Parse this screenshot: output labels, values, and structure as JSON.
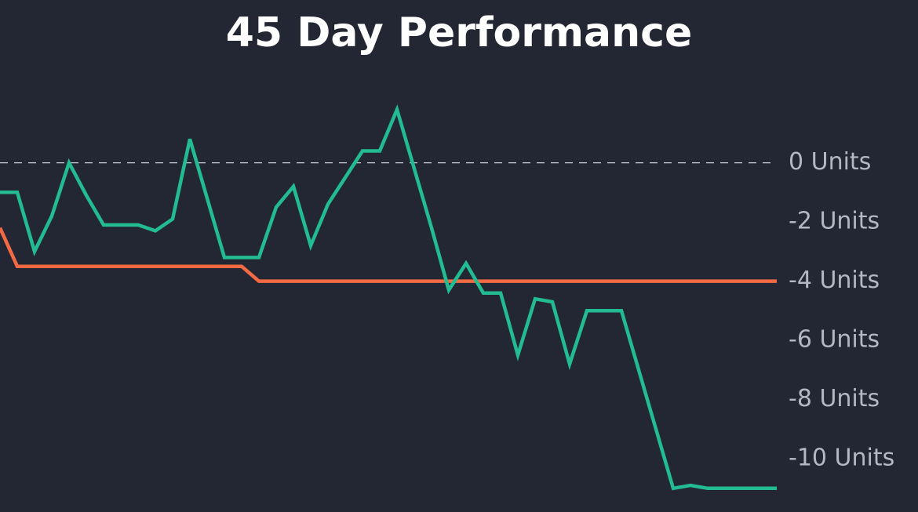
{
  "chart_data": {
    "type": "line",
    "title": "45 Day Performance",
    "categories": [
      null,
      null,
      null,
      null,
      null,
      null,
      null,
      null,
      null,
      null,
      null,
      null,
      null,
      null,
      null,
      null,
      null,
      null,
      null,
      null,
      null,
      null,
      null,
      null,
      null,
      null,
      null,
      null,
      null,
      null,
      null,
      null,
      null,
      null,
      null,
      null,
      null,
      null,
      null,
      null,
      null,
      null,
      null,
      null,
      null,
      null
    ],
    "series": [
      {
        "color": "#f26a43",
        "values": [
          -2.2,
          -3.5,
          -3.5,
          -3.5,
          -3.5,
          -3.5,
          -3.5,
          -3.5,
          -3.5,
          -3.5,
          -3.5,
          -3.5,
          -3.5,
          -3.5,
          -3.5,
          -4,
          -4,
          -4,
          -4,
          -4,
          -4,
          -4,
          -4,
          -4,
          -4,
          -4,
          -4,
          -4,
          -4,
          -4,
          -4,
          -4,
          -4,
          -4,
          -4,
          -4,
          -4,
          -4,
          -4,
          -4,
          -4,
          -4,
          -4,
          -4,
          -4,
          -4
        ]
      },
      {
        "color": "#22bb92",
        "values": [
          -1,
          -1,
          -3,
          -1.8,
          0,
          -1.1,
          -2.1,
          -2.1,
          -2.1,
          -2.3,
          -1.9,
          0.8,
          -1.2,
          -3.2,
          -3.2,
          -3.2,
          -1.5,
          -0.8,
          -2.8,
          -1.4,
          -0.5,
          0.4,
          0.4,
          1.8,
          -0.2,
          -2.2,
          -4.3,
          -3.4,
          -4.4,
          -4.4,
          -6.5,
          -4.6,
          -4.7,
          -6.8,
          -5,
          -5,
          -5,
          -7,
          -9,
          -11,
          -10.9,
          -11,
          -11,
          -11,
          -11,
          -11
        ]
      }
    ],
    "ylim": [
      5.5,
      -11.8
    ],
    "yticks": [
      {
        "value": 0,
        "label": "0 Units"
      },
      {
        "value": -2,
        "label": "-2 Units"
      },
      {
        "value": -4,
        "label": "-4 Units"
      },
      {
        "value": -6,
        "label": "-6 Units"
      },
      {
        "value": -8,
        "label": "-8 Units"
      },
      {
        "value": -10,
        "label": "-10 Units"
      }
    ],
    "zero_line": true
  }
}
